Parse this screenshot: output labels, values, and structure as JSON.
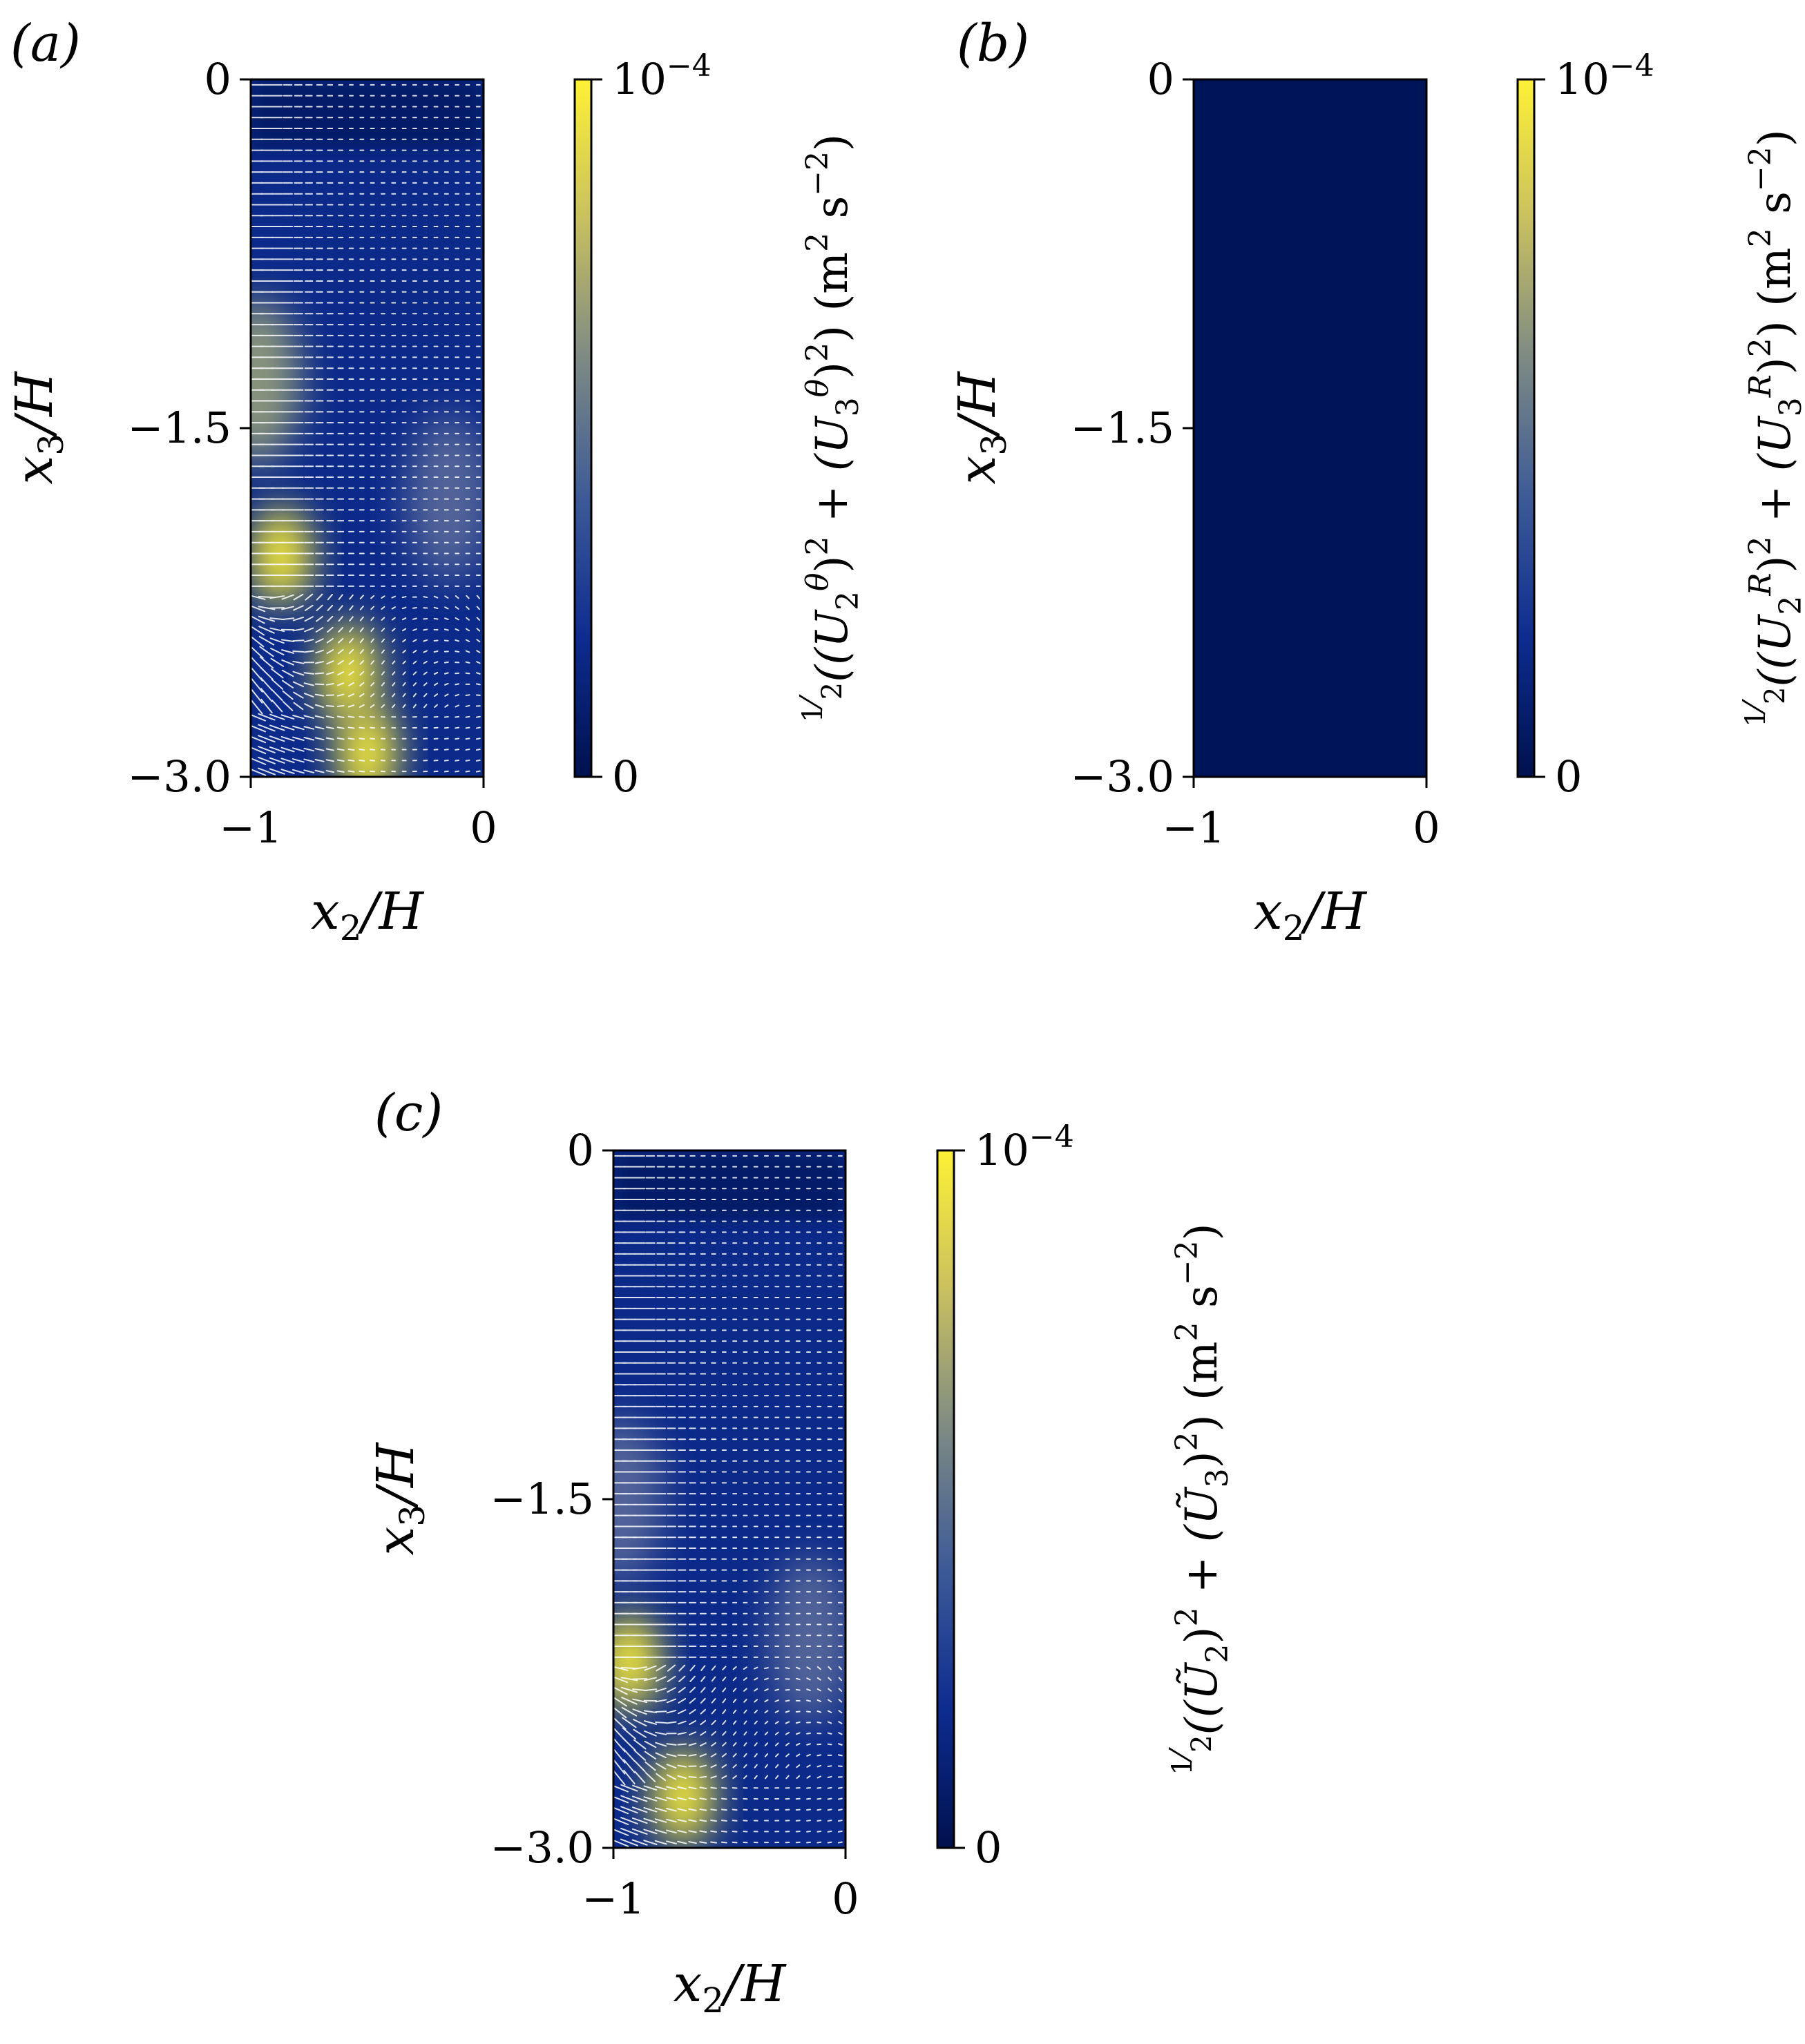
{
  "chart_data": [
    {
      "type": "heatmap",
      "panel_label": "(a)",
      "xlabel_parts": [
        "x",
        "2",
        "/H"
      ],
      "ylabel_parts": [
        "x",
        "3",
        "/H"
      ],
      "xlim": [
        -1,
        0
      ],
      "ylim": [
        -3.0,
        0
      ],
      "x_tick_values": [
        -1,
        0
      ],
      "x_tick_labels": [
        "−1",
        "0"
      ],
      "y_tick_values": [
        0,
        -1.5,
        -3.0
      ],
      "y_tick_labels": [
        "0",
        "−1.5",
        "−3.0"
      ],
      "colorbar": {
        "min": 0,
        "max": 0.0001,
        "tick_labels": [
          "10",
          "−4",
          "0"
        ],
        "colormap": [
          "#00114e",
          "#0d2c8f",
          "#3d5a97",
          "#7d8a84",
          "#c9c060",
          "#fef135"
        ],
        "label_parts": [
          "1",
          "2",
          "((U",
          "2",
          "θ",
          ")",
          "2",
          " + (U",
          "3",
          "θ",
          ")",
          "2",
          ") (m",
          "2",
          " s",
          "−2",
          ")"
        ]
      },
      "background": "#0c2a8a",
      "field_hotspots": [
        {
          "x": -0.87,
          "y": -2.05,
          "intensity": 1.0
        },
        {
          "x": -0.58,
          "y": -2.55,
          "intensity": 1.0
        },
        {
          "x": -0.5,
          "y": -2.9,
          "intensity": 0.95
        },
        {
          "x": -0.97,
          "y": -1.3,
          "intensity": 0.55
        },
        {
          "x": -0.15,
          "y": -1.8,
          "intensity": 0.45
        }
      ],
      "vector_field": true
    },
    {
      "type": "heatmap",
      "panel_label": "(b)",
      "xlabel_parts": [
        "x",
        "2",
        "/H"
      ],
      "ylabel_parts": [
        "x",
        "3",
        "/H"
      ],
      "xlim": [
        -1,
        0
      ],
      "ylim": [
        -3.0,
        0
      ],
      "x_tick_values": [
        -1,
        0
      ],
      "x_tick_labels": [
        "−1",
        "0"
      ],
      "y_tick_values": [
        0,
        -1.5,
        -3.0
      ],
      "y_tick_labels": [
        "0",
        "−1.5",
        "−3.0"
      ],
      "colorbar": {
        "min": 0,
        "max": 0.0001,
        "tick_labels": [
          "10",
          "−4",
          "0"
        ],
        "colormap": [
          "#00114e",
          "#0d2c8f",
          "#3d5a97",
          "#7d8a84",
          "#c9c060",
          "#fef135"
        ],
        "label_parts": [
          "1",
          "2",
          "((U",
          "2",
          "R",
          ")",
          "2",
          " + (U",
          "3",
          "R",
          ")",
          "2",
          ") (m",
          "2",
          " s",
          "−2",
          ")"
        ]
      },
      "background": "#00145a",
      "field_hotspots": [],
      "vector_field": false
    },
    {
      "type": "heatmap",
      "panel_label": "(c)",
      "xlabel_parts": [
        "x",
        "2",
        "/H"
      ],
      "ylabel_parts": [
        "x",
        "3",
        "/H"
      ],
      "xlim": [
        -1,
        0
      ],
      "ylim": [
        -3.0,
        0
      ],
      "x_tick_values": [
        -1,
        0
      ],
      "x_tick_labels": [
        "−1",
        "0"
      ],
      "y_tick_values": [
        0,
        -1.5,
        -3.0
      ],
      "y_tick_labels": [
        "0",
        "−1.5",
        "−3.0"
      ],
      "colorbar": {
        "min": 0,
        "max": 0.0001,
        "tick_labels": [
          "10",
          "−4",
          "0"
        ],
        "colormap": [
          "#00114e",
          "#0d2c8f",
          "#3d5a97",
          "#7d8a84",
          "#c9c060",
          "#fef135"
        ],
        "label_parts": [
          "1",
          "2",
          "((Ũ",
          "2",
          ")",
          "2",
          " + (Ũ",
          "3",
          ")",
          "2",
          ") (m",
          "2",
          " s",
          "−2",
          ")"
        ]
      },
      "background": "#0c2a8a",
      "field_hotspots": [
        {
          "x": -0.93,
          "y": -2.2,
          "intensity": 1.0
        },
        {
          "x": -0.7,
          "y": -2.78,
          "intensity": 1.0
        },
        {
          "x": -0.97,
          "y": -1.5,
          "intensity": 0.5
        },
        {
          "x": -0.15,
          "y": -2.1,
          "intensity": 0.45
        }
      ],
      "vector_field": true
    }
  ]
}
